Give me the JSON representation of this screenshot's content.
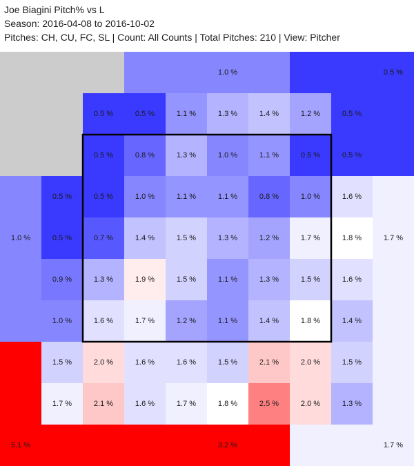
{
  "header": {
    "title": "Joe Biagini Pitch% vs L",
    "season": "Season: 2016-04-08 to 2016-10-02",
    "filters": "Pitches: CH, CU, FC, SL | Count: All Counts | Total Pitches: 210 | View: Pitcher"
  },
  "chart_data": {
    "type": "heatmap",
    "title": "Joe Biagini Pitch% vs L",
    "unit": "%",
    "grid_cols": 10,
    "grid_rows": 10,
    "strike_zone": {
      "col_start": 2,
      "row_start": 2,
      "cols": 6,
      "rows": 5
    },
    "outer_regions": [
      {
        "name": "top-left",
        "value": null,
        "label": ""
      },
      {
        "name": "top-middle",
        "value": 1.0,
        "label": "1.0 %"
      },
      {
        "name": "top-right",
        "value": 0.5,
        "label": "0.5 %"
      },
      {
        "name": "left",
        "value": 1.0,
        "label": "1.0 %"
      },
      {
        "name": "right",
        "value": 1.7,
        "label": "1.7 %"
      },
      {
        "name": "bottom-left",
        "value": 5.1,
        "label": "5.1 %"
      },
      {
        "name": "bottom-middle",
        "value": 3.2,
        "label": "3.2 %"
      },
      {
        "name": "bottom-right",
        "value": 1.7,
        "label": "1.7 %"
      }
    ],
    "grid": [
      [
        null,
        0.5,
        0.5,
        1.1,
        1.3,
        1.4,
        1.2,
        0.5
      ],
      [
        null,
        0.5,
        0.8,
        1.3,
        1.0,
        1.1,
        0.5,
        0.5
      ],
      [
        0.5,
        0.5,
        1.0,
        1.1,
        1.1,
        0.8,
        1.0,
        1.6
      ],
      [
        0.5,
        0.7,
        1.4,
        1.5,
        1.3,
        1.2,
        1.7,
        1.8
      ],
      [
        0.9,
        1.3,
        1.9,
        1.5,
        1.1,
        1.3,
        1.5,
        1.6
      ],
      [
        1.0,
        1.6,
        1.7,
        1.2,
        1.1,
        1.4,
        1.8,
        1.4
      ],
      [
        1.5,
        2.0,
        1.6,
        1.6,
        1.5,
        2.1,
        2.0,
        1.5
      ],
      [
        1.7,
        2.1,
        1.6,
        1.7,
        1.8,
        2.5,
        2.0,
        1.3
      ]
    ],
    "grid_labels": [
      [
        "",
        "0.5 %",
        "0.5 %",
        "1.1 %",
        "1.3 %",
        "1.4 %",
        "1.2 %",
        "0.5 %"
      ],
      [
        "",
        "0.5 %",
        "0.8 %",
        "1.3 %",
        "1.0 %",
        "1.1 %",
        "0.5 %",
        "0.5 %"
      ],
      [
        "0.5 %",
        "0.5 %",
        "1.0 %",
        "1.1 %",
        "1.1 %",
        "0.8 %",
        "1.0 %",
        "1.6 %"
      ],
      [
        "0.5 %",
        "0.7 %",
        "1.4 %",
        "1.5 %",
        "1.3 %",
        "1.2 %",
        "1.7 %",
        "1.8 %"
      ],
      [
        "0.9 %",
        "1.3 %",
        "1.9 %",
        "1.5 %",
        "1.1 %",
        "1.3 %",
        "1.5 %",
        "1.6 %"
      ],
      [
        "1.0 %",
        "1.6 %",
        "1.7 %",
        "1.2 %",
        "1.1 %",
        "1.4 %",
        "1.8 %",
        "1.4 %"
      ],
      [
        "1.5 %",
        "2.0 %",
        "1.6 %",
        "1.6 %",
        "1.5 %",
        "2.1 %",
        "2.0 %",
        "1.5 %"
      ],
      [
        "1.7 %",
        "2.1 %",
        "1.6 %",
        "1.7 %",
        "1.8 %",
        "2.5 %",
        "2.0 %",
        "1.3 %"
      ]
    ],
    "color_scale": {
      "low": "#3a3aff",
      "mid": "#ffffff",
      "high": "#ff0000",
      "mid_value": 1.8,
      "missing": "#cccccc"
    },
    "colors": {
      "zone_border": "#000000",
      "missing": "#cccccc"
    }
  }
}
